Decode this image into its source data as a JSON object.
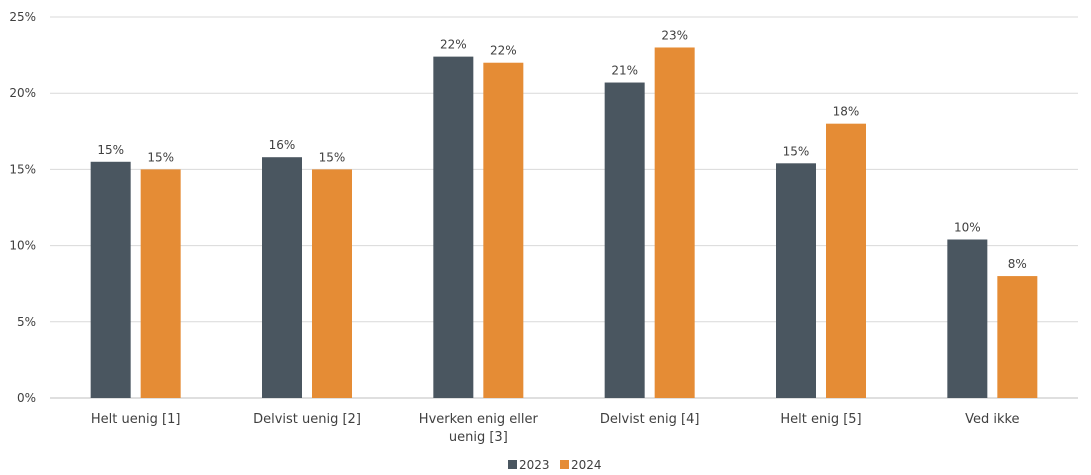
{
  "chart_data": {
    "type": "bar",
    "categories": [
      [
        "Helt uenig [1]"
      ],
      [
        "Delvist uenig [2]"
      ],
      [
        "Hverken enig eller",
        "uenig [3]"
      ],
      [
        "Delvist enig [4]"
      ],
      [
        "Helt enig [5]"
      ],
      [
        "Ved ikke"
      ]
    ],
    "series": [
      {
        "name": "2023",
        "color": "#4a5660",
        "values": [
          15.5,
          15.8,
          22.4,
          20.7,
          15.4,
          10.4
        ],
        "labels": [
          "15%",
          "16%",
          "22%",
          "21%",
          "15%",
          "10%"
        ]
      },
      {
        "name": "2024",
        "color": "#e58c35",
        "values": [
          15.0,
          15.0,
          22.0,
          23.0,
          18.0,
          8.0
        ],
        "labels": [
          "15%",
          "15%",
          "22%",
          "23%",
          "18%",
          "8%"
        ]
      }
    ],
    "ylim": [
      0,
      25
    ],
    "yticks": [
      0,
      5,
      10,
      15,
      20,
      25
    ],
    "ytick_labels": [
      "0%",
      "5%",
      "10%",
      "15%",
      "20%",
      "25%"
    ],
    "grid": true,
    "legend_position": "bottom",
    "gridline_color": "#d9d9d9"
  }
}
